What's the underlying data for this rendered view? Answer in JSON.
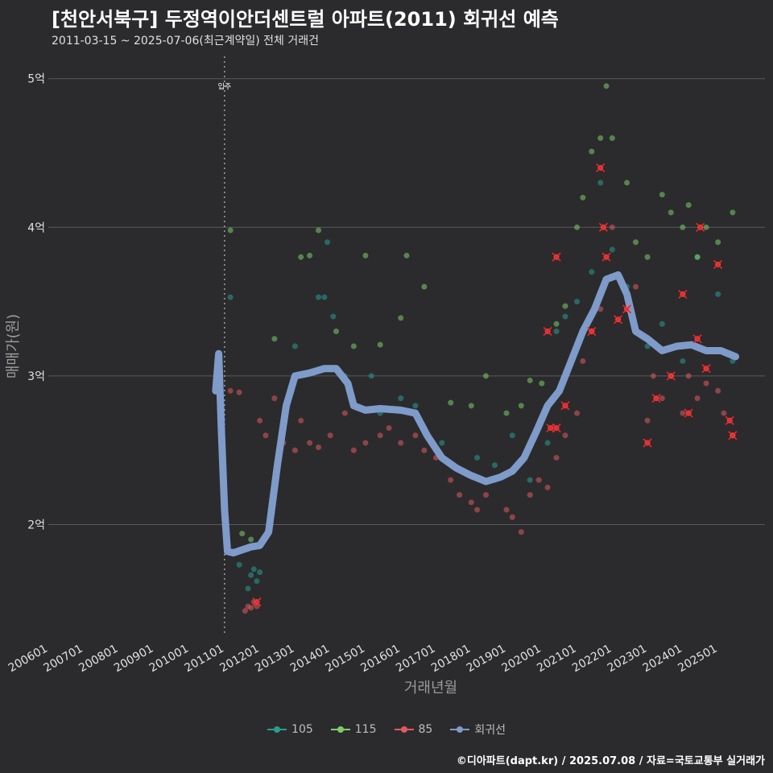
{
  "header": {
    "title": "[천안서북구] 두정역이안더센트럴 아파트(2011) 회귀선 예측",
    "subtitle": "2011-03-15 ~ 2025-07-06(최근계약일) 전체 거래건"
  },
  "footer": {
    "credit": "©디아파트(dapt.kr) / 2025.07.08 / 자료=국토교통부 실거래가"
  },
  "colors": {
    "background": "#2b2b2d",
    "grid": "#5a5a5e",
    "s105": "#2a9d8f",
    "s115": "#7ccd6a",
    "s85": "#e05a5f",
    "regression": "#7e9bc9",
    "marker": "#ff2020"
  },
  "chart_data": {
    "type": "scatter",
    "title": "[천안서북구] 두정역이안더센트럴 아파트(2011) 회귀선 예측",
    "subtitle": "2011-03-15 ~ 2025-07-06(최근계약일) 전체 거래건",
    "xlabel": "거래년월",
    "ylabel": "매매가(원)",
    "x_range": [
      "2006-01",
      "2026-05"
    ],
    "ylim": [
      1.25,
      5.15
    ],
    "y_unit": "억",
    "y_ticks": [
      {
        "value": 2,
        "label": "2억"
      },
      {
        "value": 3,
        "label": "3억"
      },
      {
        "value": 4,
        "label": "4억"
      },
      {
        "value": 5,
        "label": "5억"
      }
    ],
    "x_ticks": [
      "200601",
      "200701",
      "200801",
      "200901",
      "201001",
      "201101",
      "201201",
      "201301",
      "201401",
      "201501",
      "201601",
      "201701",
      "201801",
      "201901",
      "202001",
      "202101",
      "202201",
      "202301",
      "202401",
      "202501"
    ],
    "grid": "horizontal",
    "legend_position": "bottom",
    "annotation": {
      "label": "입주",
      "x": "2011-01"
    },
    "series": [
      {
        "name": "105",
        "type": "scatter",
        "points": [
          [
            "2011-03",
            3.53
          ],
          [
            "2011-06",
            1.73
          ],
          [
            "2011-09",
            1.57
          ],
          [
            "2011-10",
            1.66
          ],
          [
            "2011-11",
            1.7
          ],
          [
            "2011-12",
            1.62
          ],
          [
            "2012-01",
            1.68
          ],
          [
            "2013-01",
            3.2
          ],
          [
            "2013-09",
            3.53
          ],
          [
            "2013-11",
            3.53
          ],
          [
            "2013-12",
            3.9
          ],
          [
            "2014-02",
            3.4
          ],
          [
            "2014-06",
            3.0
          ],
          [
            "2015-03",
            3.0
          ],
          [
            "2015-06",
            2.75
          ],
          [
            "2016-01",
            2.85
          ],
          [
            "2016-06",
            2.8
          ],
          [
            "2017-03",
            2.55
          ],
          [
            "2018-03",
            2.45
          ],
          [
            "2018-09",
            2.4
          ],
          [
            "2019-03",
            2.6
          ],
          [
            "2019-09",
            2.3
          ],
          [
            "2020-03",
            2.55
          ],
          [
            "2020-06",
            3.3
          ],
          [
            "2020-09",
            3.4
          ],
          [
            "2021-01",
            3.5
          ],
          [
            "2021-06",
            3.7
          ],
          [
            "2021-09",
            4.3
          ],
          [
            "2022-01",
            3.85
          ],
          [
            "2022-06",
            3.6
          ],
          [
            "2023-01",
            3.2
          ],
          [
            "2023-06",
            3.35
          ],
          [
            "2024-01",
            3.1
          ],
          [
            "2024-06",
            3.8
          ],
          [
            "2025-01",
            3.55
          ],
          [
            "2025-06",
            3.1
          ]
        ]
      },
      {
        "name": "115",
        "type": "scatter",
        "points": [
          [
            "2011-03",
            3.98
          ],
          [
            "2011-07",
            1.94
          ],
          [
            "2011-10",
            1.9
          ],
          [
            "2012-06",
            3.25
          ],
          [
            "2013-03",
            3.8
          ],
          [
            "2013-06",
            3.81
          ],
          [
            "2013-09",
            3.98
          ],
          [
            "2014-03",
            3.3
          ],
          [
            "2014-09",
            3.2
          ],
          [
            "2015-01",
            3.81
          ],
          [
            "2015-06",
            3.21
          ],
          [
            "2016-01",
            3.39
          ],
          [
            "2016-03",
            3.81
          ],
          [
            "2016-09",
            3.6
          ],
          [
            "2017-06",
            2.82
          ],
          [
            "2018-01",
            2.8
          ],
          [
            "2018-06",
            3.0
          ],
          [
            "2019-01",
            2.75
          ],
          [
            "2019-06",
            2.8
          ],
          [
            "2019-09",
            2.97
          ],
          [
            "2020-01",
            2.95
          ],
          [
            "2020-06",
            3.35
          ],
          [
            "2020-09",
            3.47
          ],
          [
            "2021-01",
            4.0
          ],
          [
            "2021-03",
            4.2
          ],
          [
            "2021-06",
            4.51
          ],
          [
            "2021-09",
            4.6
          ],
          [
            "2021-11",
            4.95
          ],
          [
            "2022-01",
            4.6
          ],
          [
            "2022-06",
            4.3
          ],
          [
            "2022-09",
            3.9
          ],
          [
            "2023-01",
            3.8
          ],
          [
            "2023-06",
            4.22
          ],
          [
            "2023-09",
            4.1
          ],
          [
            "2024-01",
            4.0
          ],
          [
            "2024-03",
            4.15
          ],
          [
            "2024-06",
            3.8
          ],
          [
            "2024-09",
            4.0
          ],
          [
            "2025-01",
            3.9
          ],
          [
            "2025-06",
            4.1
          ]
        ]
      },
      {
        "name": "85",
        "type": "scatter",
        "points": [
          [
            "2011-03",
            2.9
          ],
          [
            "2011-06",
            2.89
          ],
          [
            "2011-08",
            1.42
          ],
          [
            "2011-09",
            1.45
          ],
          [
            "2011-10",
            1.44
          ],
          [
            "2011-11",
            1.48
          ],
          [
            "2011-12",
            1.45
          ],
          [
            "2012-01",
            2.7
          ],
          [
            "2012-03",
            2.6
          ],
          [
            "2012-06",
            2.85
          ],
          [
            "2012-09",
            2.55
          ],
          [
            "2013-01",
            2.5
          ],
          [
            "2013-03",
            2.7
          ],
          [
            "2013-06",
            2.55
          ],
          [
            "2013-09",
            2.52
          ],
          [
            "2014-01",
            2.6
          ],
          [
            "2014-06",
            2.75
          ],
          [
            "2014-09",
            2.5
          ],
          [
            "2015-01",
            2.55
          ],
          [
            "2015-06",
            2.6
          ],
          [
            "2015-09",
            2.65
          ],
          [
            "2016-01",
            2.55
          ],
          [
            "2016-06",
            2.6
          ],
          [
            "2016-09",
            2.5
          ],
          [
            "2017-01",
            2.45
          ],
          [
            "2017-06",
            2.3
          ],
          [
            "2017-09",
            2.2
          ],
          [
            "2018-01",
            2.15
          ],
          [
            "2018-03",
            2.1
          ],
          [
            "2018-06",
            2.2
          ],
          [
            "2018-09",
            2.3
          ],
          [
            "2019-01",
            2.1
          ],
          [
            "2019-03",
            2.05
          ],
          [
            "2019-06",
            1.95
          ],
          [
            "2019-09",
            2.2
          ],
          [
            "2019-12",
            2.3
          ],
          [
            "2020-03",
            2.25
          ],
          [
            "2020-06",
            2.45
          ],
          [
            "2020-09",
            2.6
          ],
          [
            "2021-01",
            2.75
          ],
          [
            "2021-03",
            3.1
          ],
          [
            "2021-06",
            3.3
          ],
          [
            "2021-09",
            3.45
          ],
          [
            "2022-01",
            4.0
          ],
          [
            "2022-06",
            3.45
          ],
          [
            "2022-09",
            3.6
          ],
          [
            "2023-01",
            2.7
          ],
          [
            "2023-03",
            3.0
          ],
          [
            "2023-06",
            2.85
          ],
          [
            "2023-09",
            3.0
          ],
          [
            "2024-01",
            2.75
          ],
          [
            "2024-03",
            3.0
          ],
          [
            "2024-06",
            2.85
          ],
          [
            "2024-09",
            2.95
          ],
          [
            "2025-01",
            2.9
          ],
          [
            "2025-03",
            2.75
          ],
          [
            "2025-06",
            2.6
          ]
        ]
      },
      {
        "name": "회귀선",
        "type": "line",
        "points": [
          [
            "2010-10",
            2.9
          ],
          [
            "2010-11",
            3.15
          ],
          [
            "2010-12",
            2.6
          ],
          [
            "2011-01",
            2.1
          ],
          [
            "2011-02",
            1.82
          ],
          [
            "2011-04",
            1.81
          ],
          [
            "2011-07",
            1.83
          ],
          [
            "2011-10",
            1.85
          ],
          [
            "2012-01",
            1.86
          ],
          [
            "2012-04",
            1.95
          ],
          [
            "2012-07",
            2.4
          ],
          [
            "2012-10",
            2.8
          ],
          [
            "2013-01",
            3.0
          ],
          [
            "2013-06",
            3.02
          ],
          [
            "2013-11",
            3.05
          ],
          [
            "2014-03",
            3.05
          ],
          [
            "2014-07",
            2.95
          ],
          [
            "2014-09",
            2.8
          ],
          [
            "2015-01",
            2.77
          ],
          [
            "2015-06",
            2.78
          ],
          [
            "2016-01",
            2.77
          ],
          [
            "2016-06",
            2.75
          ],
          [
            "2016-10",
            2.6
          ],
          [
            "2017-03",
            2.45
          ],
          [
            "2017-08",
            2.38
          ],
          [
            "2018-01",
            2.33
          ],
          [
            "2018-06",
            2.29
          ],
          [
            "2018-11",
            2.32
          ],
          [
            "2019-03",
            2.36
          ],
          [
            "2019-07",
            2.45
          ],
          [
            "2019-11",
            2.62
          ],
          [
            "2020-03",
            2.8
          ],
          [
            "2020-07",
            2.9
          ],
          [
            "2020-11",
            3.1
          ],
          [
            "2021-03",
            3.3
          ],
          [
            "2021-07",
            3.45
          ],
          [
            "2021-11",
            3.65
          ],
          [
            "2022-03",
            3.68
          ],
          [
            "2022-06",
            3.55
          ],
          [
            "2022-09",
            3.3
          ],
          [
            "2023-01",
            3.25
          ],
          [
            "2023-06",
            3.17
          ],
          [
            "2023-11",
            3.2
          ],
          [
            "2024-04",
            3.21
          ],
          [
            "2024-09",
            3.17
          ],
          [
            "2025-02",
            3.17
          ],
          [
            "2025-07",
            3.13
          ]
        ]
      }
    ],
    "highlighted_85_points": [
      [
        "2011-12",
        1.48
      ],
      [
        "2020-06",
        2.65
      ],
      [
        "2020-09",
        2.8
      ],
      [
        "2021-06",
        3.3
      ],
      [
        "2021-09",
        4.4
      ],
      [
        "2021-10",
        4.0
      ],
      [
        "2021-11",
        3.8
      ],
      [
        "2022-03",
        3.38
      ],
      [
        "2022-06",
        3.45
      ],
      [
        "2023-01",
        2.55
      ],
      [
        "2023-04",
        2.85
      ],
      [
        "2023-09",
        3.0
      ],
      [
        "2024-01",
        3.55
      ],
      [
        "2024-03",
        2.75
      ],
      [
        "2024-06",
        3.25
      ],
      [
        "2024-09",
        3.05
      ],
      [
        "2025-01",
        3.75
      ],
      [
        "2025-05",
        2.7
      ],
      [
        "2025-06",
        2.6
      ],
      [
        "2024-07",
        4.0
      ],
      [
        "2020-06",
        3.8
      ],
      [
        "2020-03",
        3.3
      ],
      [
        "2020-04",
        2.65
      ]
    ]
  },
  "legend": {
    "items": [
      {
        "label": "105"
      },
      {
        "label": "115"
      },
      {
        "label": "85"
      },
      {
        "label": "회귀선"
      }
    ]
  }
}
